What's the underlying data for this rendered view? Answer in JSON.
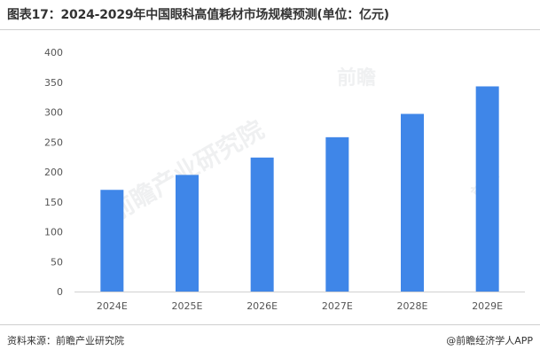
{
  "title": "图表17：2024-2029年中国眼科高值耗材市场规模预测(单位：亿元)",
  "footer": {
    "source": "资料来源：前瞻产业研究院",
    "credit": "@前瞻经济学人APP"
  },
  "watermark": {
    "brand": "前瞻",
    "institute": "前瞻产业研究院"
  },
  "chart_data": {
    "type": "bar",
    "title": "",
    "xlabel": "",
    "ylabel": "",
    "categories": [
      "2024E",
      "2025E",
      "2026E",
      "2027E",
      "2028E",
      "2029E"
    ],
    "values": [
      170,
      195,
      224,
      258,
      297,
      343
    ],
    "ylim": [
      0,
      400
    ],
    "yticks": [
      0,
      50,
      100,
      150,
      200,
      250,
      300,
      350,
      400
    ],
    "grid": false,
    "legend": "none",
    "bar_color": "#3f86e8"
  }
}
